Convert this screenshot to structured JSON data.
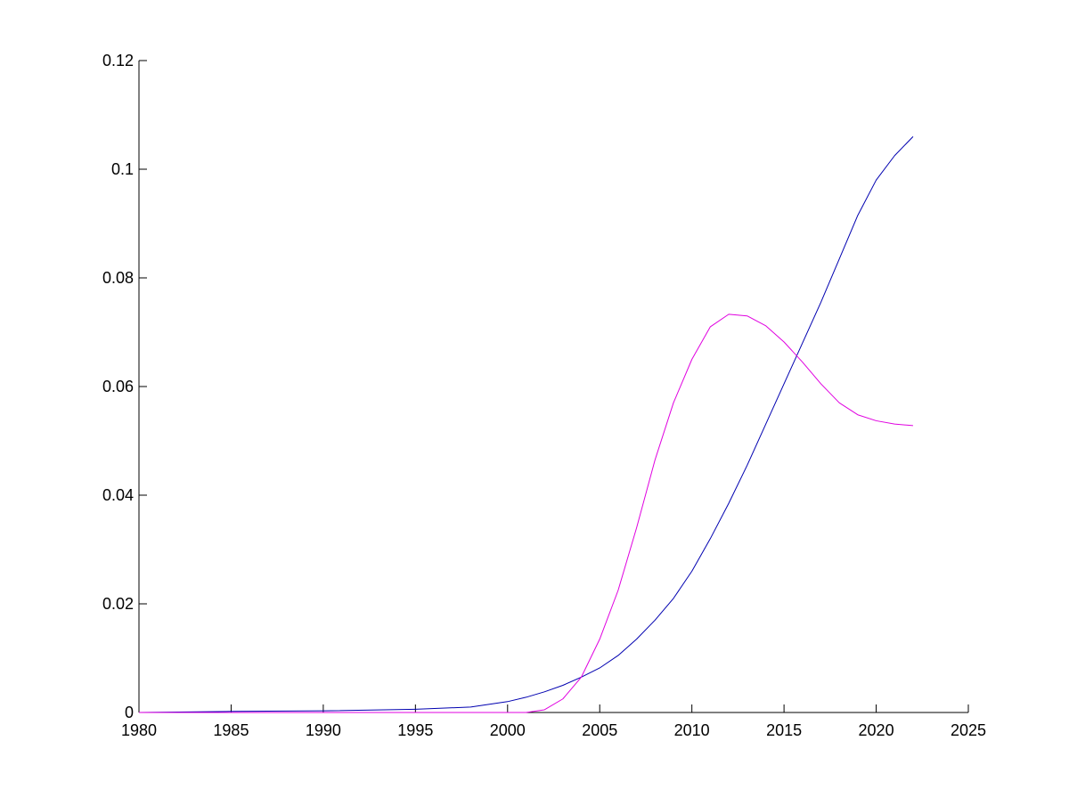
{
  "chart_data": {
    "type": "line",
    "title": "",
    "xlabel": "",
    "ylabel": "",
    "xlim": [
      1980,
      2025
    ],
    "ylim": [
      0,
      0.12
    ],
    "x_ticks": [
      "1980",
      "1985",
      "1990",
      "1995",
      "2000",
      "2005",
      "2010",
      "2015",
      "2020",
      "2025"
    ],
    "y_ticks": [
      "0",
      "0.02",
      "0.04",
      "0.06",
      "0.08",
      "0.1",
      "0.12"
    ],
    "grid": false,
    "legend": "none",
    "series": [
      {
        "color": "#0000b0",
        "x": [
          1980,
          1985,
          1990,
          1995,
          1998,
          2000,
          2001,
          2002,
          2003,
          2004,
          2005,
          2006,
          2007,
          2008,
          2009,
          2010,
          2011,
          2012,
          2013,
          2014,
          2015,
          2016,
          2017,
          2018,
          2019,
          2020,
          2021,
          2022
        ],
        "y": [
          0.0,
          0.0002,
          0.0003,
          0.0006,
          0.001,
          0.002,
          0.0028,
          0.0038,
          0.005,
          0.0065,
          0.0082,
          0.0105,
          0.0135,
          0.017,
          0.021,
          0.026,
          0.032,
          0.0385,
          0.0455,
          0.053,
          0.0605,
          0.068,
          0.0755,
          0.0835,
          0.0915,
          0.098,
          0.1025,
          0.106
        ]
      },
      {
        "color": "#e000e0",
        "x": [
          1980,
          1990,
          2000,
          2001,
          2002,
          2003,
          2004,
          2005,
          2006,
          2007,
          2008,
          2009,
          2010,
          2011,
          2012,
          2013,
          2014,
          2015,
          2016,
          2017,
          2018,
          2019,
          2020,
          2021,
          2022
        ],
        "y": [
          0.0,
          0.0,
          0.0,
          0.0,
          0.0005,
          0.0025,
          0.0065,
          0.0135,
          0.0225,
          0.034,
          0.0465,
          0.057,
          0.065,
          0.071,
          0.0733,
          0.073,
          0.0712,
          0.0682,
          0.0645,
          0.0605,
          0.057,
          0.0548,
          0.0537,
          0.0531,
          0.0528
        ]
      }
    ]
  }
}
